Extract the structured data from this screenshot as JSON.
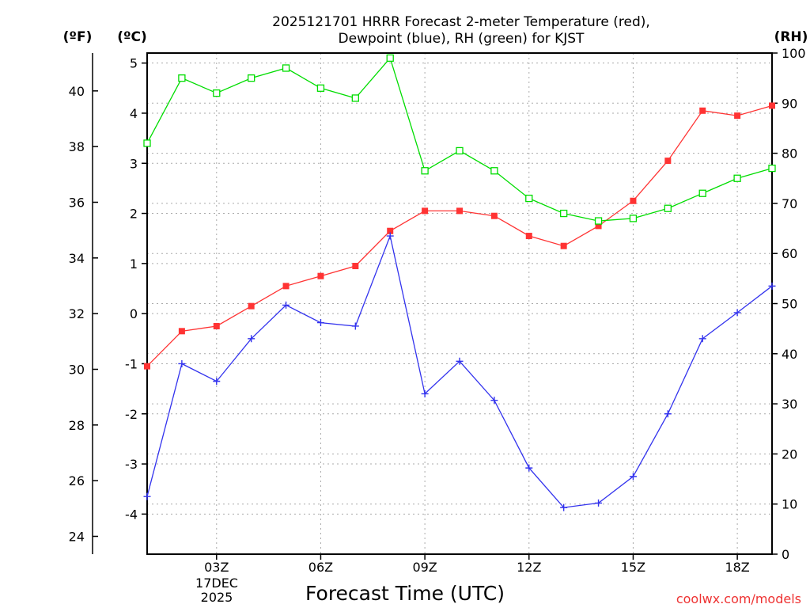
{
  "title_line1": "2025121701 HRRR Forecast 2-meter Temperature (red),",
  "title_line2": "Dewpoint (blue), RH (green) for KJST",
  "credit": "coolwx.com/models",
  "colors": {
    "temperature": "#ff3333",
    "dewpoint": "#3333ee",
    "rh": "#00dd00",
    "grid": "#aaaaaa",
    "axis": "#000000"
  },
  "chart_data": {
    "type": "line",
    "title": "2025121701 HRRR Forecast 2-meter Temperature (red), Dewpoint (blue), RH (green) for KJST",
    "xlabel": "Forecast Time (UTC)",
    "date_label": [
      "17DEC",
      "2025"
    ],
    "x_hours": [
      1,
      2,
      3,
      4,
      5,
      6,
      7,
      8,
      9,
      10,
      11,
      12,
      13,
      14,
      15,
      16,
      17,
      18,
      19
    ],
    "x_range": [
      1,
      19
    ],
    "x_ticks": [
      {
        "hour": 3,
        "label": "03Z"
      },
      {
        "hour": 6,
        "label": "06Z"
      },
      {
        "hour": 9,
        "label": "09Z"
      },
      {
        "hour": 12,
        "label": "12Z"
      },
      {
        "hour": 15,
        "label": "15Z"
      },
      {
        "hour": 18,
        "label": "18Z"
      }
    ],
    "axes": {
      "celsius": {
        "label": "(ºC)",
        "range": [
          -4.8,
          5.2
        ],
        "ticks": [
          "5",
          "4",
          "3",
          "2",
          "1",
          "0",
          "-1",
          "-2",
          "-3",
          "-4"
        ],
        "tick_values": [
          5,
          4,
          3,
          2,
          1,
          0,
          -1,
          -2,
          -3,
          -4
        ]
      },
      "fahrenheit": {
        "label": "(ºF)",
        "ticks": [
          "40",
          "38",
          "36",
          "34",
          "32",
          "30",
          "28",
          "26",
          "24"
        ],
        "tick_values": [
          40,
          38,
          36,
          34,
          32,
          30,
          28,
          26,
          24
        ]
      },
      "rh": {
        "label": "(RH)",
        "range": [
          0,
          100
        ],
        "ticks": [
          "100",
          "90",
          "80",
          "70",
          "60",
          "50",
          "40",
          "30",
          "20",
          "10",
          "0"
        ],
        "tick_values": [
          100,
          90,
          80,
          70,
          60,
          50,
          40,
          30,
          20,
          10,
          0
        ]
      }
    },
    "grid": true,
    "series": [
      {
        "name": "Temperature",
        "unit": "C",
        "axis": "celsius",
        "marker": "filled-square",
        "values": [
          -1.05,
          -0.35,
          -0.25,
          0.15,
          0.55,
          0.75,
          0.95,
          1.65,
          2.05,
          2.05,
          1.95,
          1.55,
          1.35,
          1.75,
          2.25,
          3.05,
          4.05,
          3.95,
          4.15
        ]
      },
      {
        "name": "Dewpoint",
        "unit": "C",
        "axis": "celsius",
        "marker": "plus",
        "values": [
          -3.65,
          -1.0,
          -1.35,
          -0.5,
          0.17,
          -0.18,
          -0.25,
          1.55,
          -1.6,
          -0.95,
          -1.73,
          -3.08,
          -3.87,
          -3.78,
          -3.25,
          -2.0,
          -0.5,
          0.02,
          0.55
        ]
      },
      {
        "name": "Relative Humidity",
        "unit": "%",
        "axis": "rh",
        "marker": "open-square",
        "values": [
          82,
          95,
          92,
          95,
          97,
          93,
          91,
          99,
          76.5,
          80.5,
          76.5,
          71,
          68,
          66.5,
          67,
          69,
          72,
          75,
          77
        ]
      }
    ]
  }
}
